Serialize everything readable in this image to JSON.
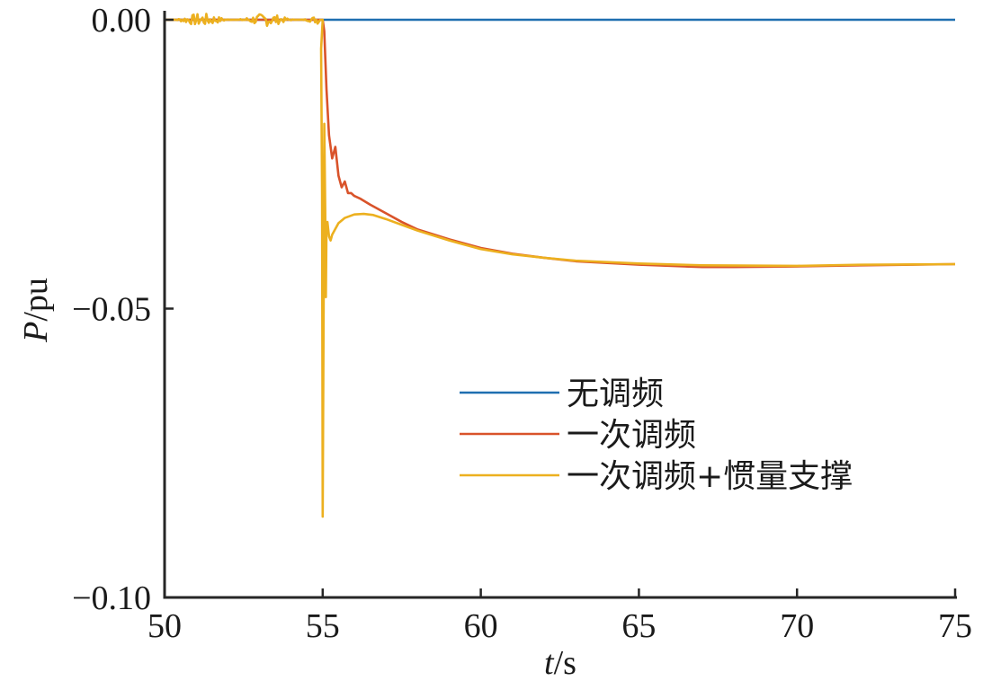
{
  "chart_data": {
    "type": "line",
    "xlabel": {
      "italic": "t",
      "rest": "/s"
    },
    "ylabel": {
      "italic": "P",
      "rest": "/pu"
    },
    "xlim": [
      50,
      75
    ],
    "ylim": [
      -0.1,
      0.0
    ],
    "xticks": [
      50,
      55,
      60,
      65,
      70,
      75
    ],
    "xtick_labels": [
      "50",
      "55",
      "60",
      "65",
      "70",
      "75"
    ],
    "yticks": [
      0.0,
      -0.05,
      -0.1
    ],
    "ytick_labels": [
      "0.00",
      "−0.05",
      "−0.10"
    ],
    "grid": false,
    "legend_position": "lower-right",
    "series": [
      {
        "name": "无调频",
        "color": "#1f6fb0",
        "x": [
          50,
          75
        ],
        "y": [
          0.0,
          0.0
        ]
      },
      {
        "name": "一次调频",
        "color": "#d9532a",
        "x": [
          50,
          55.0,
          55.05,
          55.12,
          55.2,
          55.3,
          55.4,
          55.5,
          55.6,
          55.7,
          55.8,
          55.9,
          56.0,
          56.2,
          56.5,
          57.0,
          57.5,
          58.0,
          59.0,
          60.0,
          61.0,
          62.0,
          63.0,
          65.0,
          67.0,
          68.0,
          70.0,
          72.0,
          75.0
        ],
        "y": [
          0.0,
          0.0,
          -0.002,
          -0.012,
          -0.02,
          -0.024,
          -0.022,
          -0.027,
          -0.029,
          -0.028,
          -0.03,
          -0.03,
          -0.0305,
          -0.031,
          -0.032,
          -0.0335,
          -0.035,
          -0.0363,
          -0.038,
          -0.0395,
          -0.0405,
          -0.0412,
          -0.0418,
          -0.0424,
          -0.0428,
          -0.0428,
          -0.0427,
          -0.0425,
          -0.0423
        ]
      },
      {
        "name": "一次调频+惯量支撑",
        "color": "#ecb01f",
        "x": [
          50,
          55.0,
          54.95,
          54.98,
          55.0,
          55.03,
          55.05,
          55.08,
          55.1,
          55.12,
          55.15,
          55.2,
          55.25,
          55.3,
          55.4,
          55.5,
          55.7,
          56.0,
          56.3,
          56.6,
          57.0,
          57.5,
          58.0,
          59.0,
          60.0,
          61.0,
          62.0,
          63.0,
          65.0,
          67.0,
          70.0,
          72.0,
          75.0
        ],
        "y": [
          0.0,
          0.0,
          -0.005,
          -0.03,
          -0.086,
          -0.05,
          -0.018,
          -0.033,
          -0.048,
          -0.036,
          -0.035,
          -0.0375,
          -0.0382,
          -0.0372,
          -0.0362,
          -0.0352,
          -0.0343,
          -0.0337,
          -0.0336,
          -0.0338,
          -0.0345,
          -0.0355,
          -0.0365,
          -0.0382,
          -0.0397,
          -0.0406,
          -0.0412,
          -0.0417,
          -0.0422,
          -0.0425,
          -0.0426,
          -0.0424,
          -0.0423
        ]
      }
    ]
  }
}
